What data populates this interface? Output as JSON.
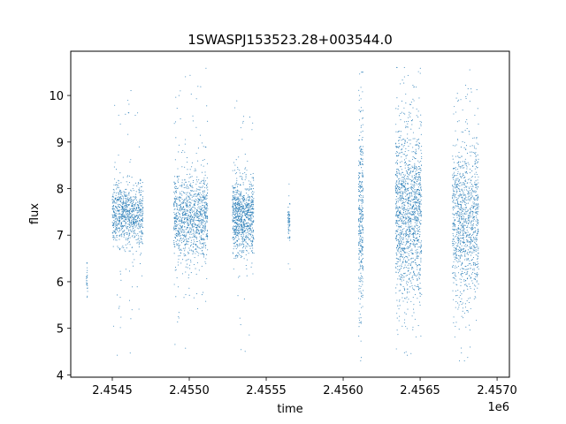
{
  "chart_data": {
    "type": "scatter",
    "title": "1SWASPJ153523.28+003544.0",
    "xlabel": "time",
    "ylabel": "flux",
    "x_offset_label": "1e6",
    "xlim": [
      2454230,
      2457080
    ],
    "ylim": [
      3.95,
      10.95
    ],
    "x_ticks": [
      2454500,
      2455000,
      2455500,
      2456000,
      2456500,
      2457000
    ],
    "x_tick_labels": [
      "2.4545",
      "2.4550",
      "2.4555",
      "2.4560",
      "2.4565",
      "2.4570"
    ],
    "y_ticks": [
      4,
      5,
      6,
      7,
      8,
      9,
      10
    ],
    "y_tick_labels": [
      "4",
      "5",
      "6",
      "7",
      "8",
      "9",
      "10"
    ],
    "grid": false,
    "marker_color": "#1f77b4",
    "observing_seasons": [
      {
        "t_start": 2454330,
        "t_end": 2454340,
        "center": 6.0,
        "spread": 0.25,
        "min": 5.6,
        "max": 6.4,
        "points": 25
      },
      {
        "t_start": 2454500,
        "t_end": 2454700,
        "center": 7.45,
        "spread": 0.35,
        "min": 4.4,
        "max": 10.2,
        "points": 900
      },
      {
        "t_start": 2454900,
        "t_end": 2455120,
        "center": 7.4,
        "spread": 0.45,
        "min": 4.4,
        "max": 10.6,
        "points": 1100
      },
      {
        "t_start": 2455280,
        "t_end": 2455420,
        "center": 7.4,
        "spread": 0.4,
        "min": 4.35,
        "max": 10.55,
        "points": 900
      },
      {
        "t_start": 2455640,
        "t_end": 2455655,
        "center": 7.3,
        "spread": 0.25,
        "min": 5.5,
        "max": 8.1,
        "points": 60
      },
      {
        "t_start": 2456100,
        "t_end": 2456130,
        "center": 7.4,
        "spread": 1.0,
        "min": 4.3,
        "max": 10.5,
        "points": 350
      },
      {
        "t_start": 2456340,
        "t_end": 2456510,
        "center": 7.5,
        "spread": 0.9,
        "min": 4.3,
        "max": 10.6,
        "points": 1400
      },
      {
        "t_start": 2456710,
        "t_end": 2456880,
        "center": 7.3,
        "spread": 0.85,
        "min": 4.3,
        "max": 10.55,
        "points": 1100
      }
    ]
  }
}
